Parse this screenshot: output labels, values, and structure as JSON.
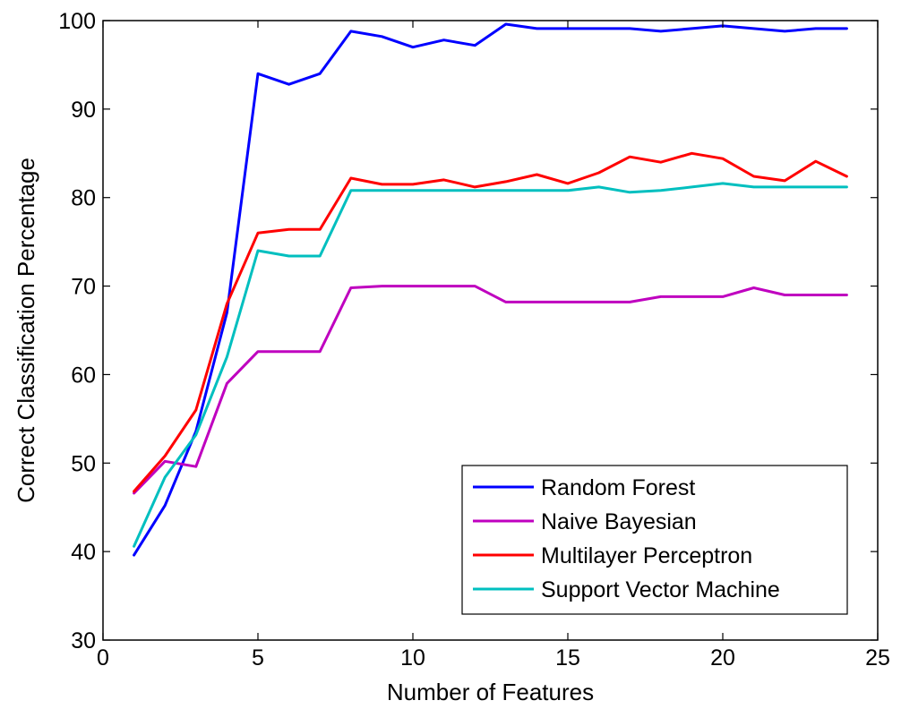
{
  "chart_data": {
    "type": "line",
    "title": "",
    "xlabel": "Number of Features",
    "ylabel": "Correct Classification Percentage",
    "xlim": [
      0,
      25
    ],
    "ylim": [
      30,
      100
    ],
    "xticks": [
      0,
      5,
      10,
      15,
      20,
      25
    ],
    "yticks": [
      30,
      40,
      50,
      60,
      70,
      80,
      90,
      100
    ],
    "grid": false,
    "legend_position": "bottom-right",
    "x": [
      1,
      2,
      3,
      4,
      5,
      6,
      7,
      8,
      9,
      10,
      11,
      12,
      13,
      14,
      15,
      16,
      17,
      18,
      19,
      20,
      21,
      22,
      23,
      24
    ],
    "series": [
      {
        "name": "Random Forest",
        "color": "#0000ff",
        "values": [
          39.6,
          45.2,
          53.6,
          67.0,
          94.0,
          92.8,
          94.0,
          98.8,
          98.2,
          97.0,
          97.8,
          97.2,
          99.6,
          99.1,
          99.1,
          99.1,
          99.1,
          98.8,
          99.1,
          99.4,
          99.1,
          98.8,
          99.1,
          99.1
        ]
      },
      {
        "name": "Naive Bayesian",
        "color": "#bf00bf",
        "values": [
          46.6,
          50.2,
          49.6,
          59.0,
          62.6,
          62.6,
          62.6,
          69.8,
          70.0,
          70.0,
          70.0,
          70.0,
          68.2,
          68.2,
          68.2,
          68.2,
          68.2,
          68.8,
          68.8,
          68.8,
          69.8,
          69.0,
          69.0,
          69.0
        ]
      },
      {
        "name": "Multilayer Perceptron",
        "color": "#ff0000",
        "values": [
          46.8,
          50.8,
          56.0,
          68.0,
          76.0,
          76.4,
          76.4,
          82.2,
          81.5,
          81.5,
          82.0,
          81.2,
          81.8,
          82.6,
          81.6,
          82.8,
          84.6,
          84.0,
          85.0,
          84.4,
          82.4,
          81.9,
          84.1,
          82.4
        ]
      },
      {
        "name": "Support Vector Machine",
        "color": "#00bfbf",
        "values": [
          40.6,
          48.4,
          53.2,
          62.0,
          74.0,
          73.4,
          73.4,
          80.8,
          80.8,
          80.8,
          80.8,
          80.8,
          80.8,
          80.8,
          80.8,
          81.2,
          80.6,
          80.8,
          81.2,
          81.6,
          81.2,
          81.2,
          81.2,
          81.2
        ]
      }
    ]
  }
}
